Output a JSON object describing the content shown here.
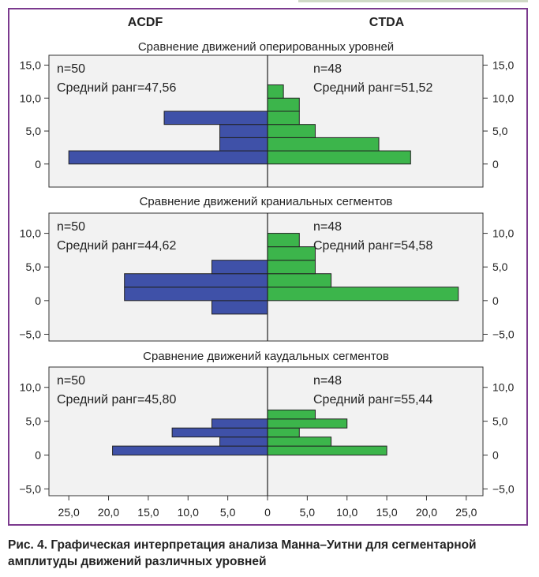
{
  "headers": {
    "left": "ACDF",
    "right": "CTDA"
  },
  "colors": {
    "left_bar": "#3f51a8",
    "right_bar": "#3cb54b",
    "panel_bg": "#f2f2f2",
    "frame": "#7b3a8e"
  },
  "chart_data": [
    {
      "type": "bar",
      "title": "Сравнение движений оперированных уровней",
      "ylim": [
        -3.5,
        16.5
      ],
      "yticks": [
        0,
        5,
        10,
        15
      ],
      "ytick_labels": [
        "0",
        "5,0",
        "10,0",
        "15,0"
      ],
      "bin_width": 2,
      "series": [
        {
          "name": "ACDF",
          "bins": [
            0,
            2,
            4,
            6
          ],
          "counts": [
            25,
            6,
            6,
            13
          ],
          "annotation": [
            "n=50",
            "Средний ранг=47,56"
          ]
        },
        {
          "name": "CTDA",
          "bins": [
            0,
            2,
            4,
            6,
            8,
            10,
            12
          ],
          "counts": [
            18,
            14,
            6,
            4,
            4,
            2,
            0
          ],
          "annotation": [
            "n=48",
            "Средний ранг=51,52"
          ]
        }
      ]
    },
    {
      "type": "bar",
      "title": "Сравнение движений краниальных сегментов",
      "ylim": [
        -6.0,
        13.0
      ],
      "yticks": [
        -5,
        0,
        5,
        10
      ],
      "ytick_labels": [
        "−5,0",
        "0",
        "5,0",
        "10,0"
      ],
      "bin_width": 2,
      "series": [
        {
          "name": "ACDF",
          "bins": [
            -2,
            0,
            2,
            4
          ],
          "counts": [
            7,
            18,
            18,
            7
          ],
          "annotation": [
            "n=50",
            "Средний ранг=44,62"
          ]
        },
        {
          "name": "CTDA",
          "bins": [
            0,
            2,
            4,
            6,
            8
          ],
          "counts": [
            24,
            8,
            6,
            6,
            4
          ],
          "annotation": [
            "n=48",
            "Средний ранг=54,58"
          ]
        }
      ]
    },
    {
      "type": "bar",
      "title": "Сравнение движений каудальных сегментов",
      "ylim": [
        -6.0,
        13.0
      ],
      "yticks": [
        -5,
        0,
        5,
        10
      ],
      "ytick_labels": [
        "−5,0",
        "0",
        "5,0",
        "10,0"
      ],
      "bin_width": 1.33,
      "series": [
        {
          "name": "ACDF",
          "bins": [
            0,
            1.33,
            2.67,
            4
          ],
          "counts": [
            19.5,
            6,
            12,
            7
          ],
          "annotation": [
            "n=50",
            "Средний ранг=45,80"
          ]
        },
        {
          "name": "CTDA",
          "bins": [
            0,
            1.33,
            2.67,
            4,
            5.33
          ],
          "counts": [
            15,
            8,
            4,
            10,
            6
          ],
          "annotation": [
            "n=48",
            "Средний ранг=55,44"
          ]
        }
      ]
    }
  ],
  "x_axis": {
    "ticks": [
      -25,
      -20,
      -15,
      -10,
      -5,
      0,
      5,
      10,
      15,
      20,
      25
    ],
    "tick_labels": [
      "25,0",
      "20,0",
      "15,0",
      "10,0",
      "5,0",
      "0",
      "5,0",
      "10,0",
      "15,0",
      "20,0",
      "25,0"
    ]
  },
  "caption": "Рис. 4. Графическая интерпретация анализа Манна–Уитни для сегментарной амплитуды движений различных уровней"
}
